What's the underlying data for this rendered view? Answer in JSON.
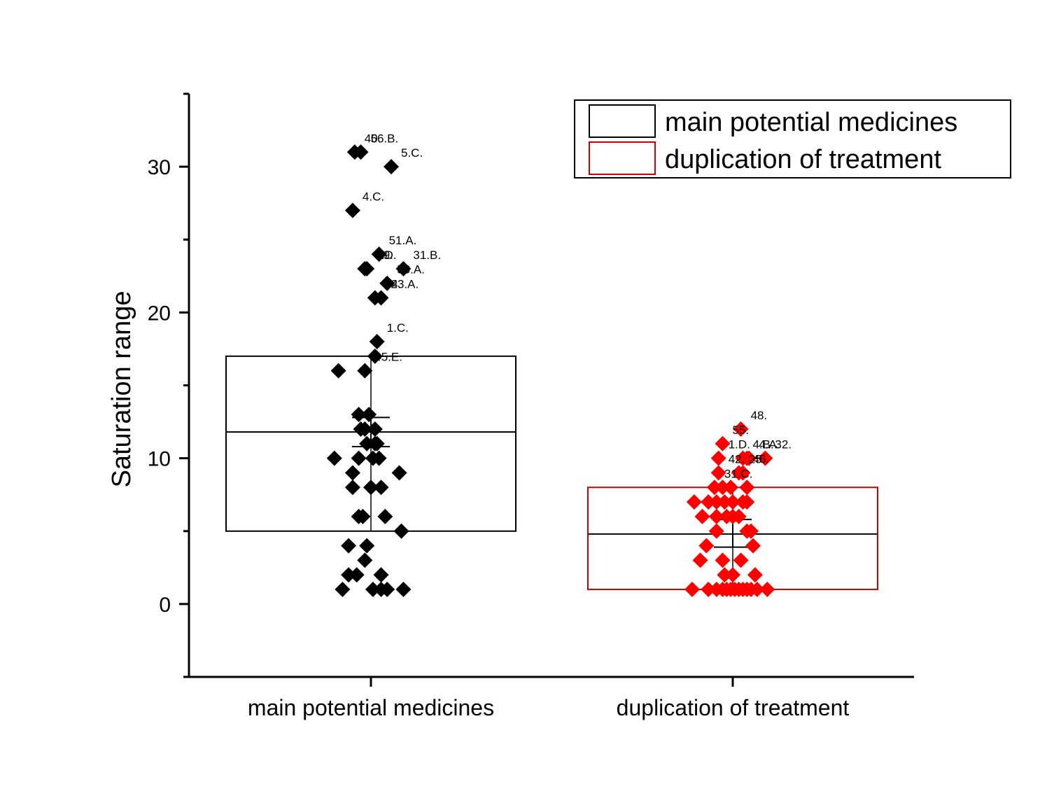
{
  "chart_data": {
    "type": "box-scatter",
    "ylabel": "Saturation range",
    "ylim": [
      -5,
      35
    ],
    "yticks": [
      0,
      10,
      20,
      30
    ],
    "yminor_ticks": [
      -5,
      5,
      15,
      25,
      35
    ],
    "categories": [
      "main potential medicines",
      "duplication of treatment"
    ],
    "legend": {
      "position": "top-right",
      "entries": [
        "main potential medicines",
        "duplication of treatment"
      ]
    },
    "series": [
      {
        "name": "main potential medicines",
        "color": "#000000",
        "box": {
          "q1": 5,
          "q3": 17,
          "median": 11.8,
          "mean": 11.8,
          "mean_error_low": 10.8,
          "mean_error_high": 12.8
        },
        "points": [
          {
            "dx": -0.08,
            "y": 31,
            "label": "40."
          },
          {
            "dx": -0.05,
            "y": 31,
            "label": "56.B."
          },
          {
            "dx": 0.1,
            "y": 30,
            "label": "5.C."
          },
          {
            "dx": -0.09,
            "y": 27,
            "label": "4.C."
          },
          {
            "dx": 0.04,
            "y": 24,
            "label": "51.A."
          },
          {
            "dx": -0.03,
            "y": 23,
            "label": "5.D."
          },
          {
            "dx": -0.02,
            "y": 23,
            "label": "19."
          },
          {
            "dx": 0.16,
            "y": 23,
            "label": "31.B."
          },
          {
            "dx": 0.08,
            "y": 22,
            "label": "56.A."
          },
          {
            "dx": 0.02,
            "y": 21,
            "label": "34."
          },
          {
            "dx": 0.05,
            "y": 21,
            "label": "23.A."
          },
          {
            "dx": 0.03,
            "y": 18,
            "label": "1.C."
          },
          {
            "dx": 0.02,
            "y": 17,
            "label": ""
          },
          {
            "dx": -0.16,
            "y": 16,
            "label": ""
          },
          {
            "dx": -0.03,
            "y": 16,
            "label": "45.E."
          },
          {
            "dx": -0.06,
            "y": 13,
            "label": ""
          },
          {
            "dx": -0.01,
            "y": 13,
            "label": ""
          },
          {
            "dx": -0.05,
            "y": 12,
            "label": ""
          },
          {
            "dx": -0.03,
            "y": 12,
            "label": ""
          },
          {
            "dx": 0.02,
            "y": 12,
            "label": ""
          },
          {
            "dx": -0.02,
            "y": 11,
            "label": ""
          },
          {
            "dx": 0.02,
            "y": 11,
            "label": ""
          },
          {
            "dx": 0.03,
            "y": 11,
            "label": ""
          },
          {
            "dx": -0.18,
            "y": 10,
            "label": ""
          },
          {
            "dx": -0.06,
            "y": 10,
            "label": ""
          },
          {
            "dx": 0.01,
            "y": 10,
            "label": ""
          },
          {
            "dx": 0.04,
            "y": 10,
            "label": ""
          },
          {
            "dx": -0.09,
            "y": 9,
            "label": ""
          },
          {
            "dx": 0.14,
            "y": 9,
            "label": ""
          },
          {
            "dx": -0.09,
            "y": 8,
            "label": ""
          },
          {
            "dx": 0.0,
            "y": 8,
            "label": ""
          },
          {
            "dx": 0.05,
            "y": 8,
            "label": ""
          },
          {
            "dx": -0.06,
            "y": 6,
            "label": ""
          },
          {
            "dx": -0.04,
            "y": 6,
            "label": ""
          },
          {
            "dx": 0.07,
            "y": 6,
            "label": ""
          },
          {
            "dx": 0.15,
            "y": 5,
            "label": ""
          },
          {
            "dx": -0.11,
            "y": 4,
            "label": ""
          },
          {
            "dx": -0.02,
            "y": 4,
            "label": ""
          },
          {
            "dx": -0.03,
            "y": 3,
            "label": ""
          },
          {
            "dx": -0.11,
            "y": 2,
            "label": ""
          },
          {
            "dx": -0.07,
            "y": 2,
            "label": ""
          },
          {
            "dx": 0.05,
            "y": 2,
            "label": ""
          },
          {
            "dx": -0.14,
            "y": 1,
            "label": ""
          },
          {
            "dx": 0.01,
            "y": 1,
            "label": ""
          },
          {
            "dx": 0.05,
            "y": 1,
            "label": ""
          },
          {
            "dx": 0.08,
            "y": 1,
            "label": ""
          },
          {
            "dx": 0.16,
            "y": 1,
            "label": ""
          }
        ]
      },
      {
        "name": "duplication of treatment",
        "color": "#ff0000",
        "box": {
          "q1": 1,
          "q3": 8,
          "median": 4.8,
          "mean": 4.8,
          "mean_error_low": 3.9,
          "mean_error_high": 5.8
        },
        "points": [
          {
            "dx": 0.04,
            "y": 12,
            "label": "48."
          },
          {
            "dx": -0.05,
            "y": 11,
            "label": "55."
          },
          {
            "dx": -0.07,
            "y": 10,
            "label": "1.D."
          },
          {
            "dx": 0.05,
            "y": 10,
            "label": "4.B."
          },
          {
            "dx": 0.07,
            "y": 10,
            "label": ""
          },
          {
            "dx": 0.16,
            "y": 10,
            "label": "32."
          },
          {
            "dx": 0.08,
            "y": 10,
            "label": "4.A."
          },
          {
            "dx": -0.07,
            "y": 9,
            "label": "42."
          },
          {
            "dx": 0.03,
            "y": 9,
            "label": "25."
          },
          {
            "dx": 0.05,
            "y": 9,
            "label": "46."
          },
          {
            "dx": -0.09,
            "y": 8,
            "label": "31.C."
          },
          {
            "dx": -0.05,
            "y": 8,
            "label": ""
          },
          {
            "dx": -0.01,
            "y": 8,
            "label": ""
          },
          {
            "dx": 0.07,
            "y": 8,
            "label": ""
          },
          {
            "dx": -0.19,
            "y": 7,
            "label": ""
          },
          {
            "dx": -0.12,
            "y": 7,
            "label": ""
          },
          {
            "dx": -0.08,
            "y": 7,
            "label": ""
          },
          {
            "dx": -0.04,
            "y": 7,
            "label": ""
          },
          {
            "dx": 0.0,
            "y": 7,
            "label": ""
          },
          {
            "dx": 0.05,
            "y": 7,
            "label": ""
          },
          {
            "dx": 0.07,
            "y": 7,
            "label": ""
          },
          {
            "dx": -0.15,
            "y": 6,
            "label": ""
          },
          {
            "dx": -0.08,
            "y": 6,
            "label": ""
          },
          {
            "dx": -0.03,
            "y": 6,
            "label": ""
          },
          {
            "dx": 0.0,
            "y": 6,
            "label": ""
          },
          {
            "dx": 0.03,
            "y": 6,
            "label": ""
          },
          {
            "dx": -0.08,
            "y": 5,
            "label": ""
          },
          {
            "dx": 0.07,
            "y": 5,
            "label": ""
          },
          {
            "dx": 0.09,
            "y": 5,
            "label": ""
          },
          {
            "dx": -0.13,
            "y": 4,
            "label": ""
          },
          {
            "dx": 0.1,
            "y": 4,
            "label": ""
          },
          {
            "dx": -0.16,
            "y": 3,
            "label": ""
          },
          {
            "dx": -0.05,
            "y": 3,
            "label": ""
          },
          {
            "dx": 0.04,
            "y": 3,
            "label": ""
          },
          {
            "dx": -0.04,
            "y": 2,
            "label": ""
          },
          {
            "dx": 0.0,
            "y": 2,
            "label": ""
          },
          {
            "dx": 0.11,
            "y": 2,
            "label": ""
          },
          {
            "dx": -0.2,
            "y": 1,
            "label": ""
          },
          {
            "dx": -0.12,
            "y": 1,
            "label": ""
          },
          {
            "dx": -0.08,
            "y": 1,
            "label": ""
          },
          {
            "dx": -0.05,
            "y": 1,
            "label": ""
          },
          {
            "dx": -0.03,
            "y": 1,
            "label": ""
          },
          {
            "dx": -0.01,
            "y": 1,
            "label": ""
          },
          {
            "dx": 0.01,
            "y": 1,
            "label": ""
          },
          {
            "dx": 0.03,
            "y": 1,
            "label": ""
          },
          {
            "dx": 0.05,
            "y": 1,
            "label": ""
          },
          {
            "dx": 0.07,
            "y": 1,
            "label": ""
          },
          {
            "dx": 0.09,
            "y": 1,
            "label": ""
          },
          {
            "dx": 0.12,
            "y": 1,
            "label": ""
          },
          {
            "dx": 0.17,
            "y": 1,
            "label": ""
          }
        ]
      }
    ]
  }
}
